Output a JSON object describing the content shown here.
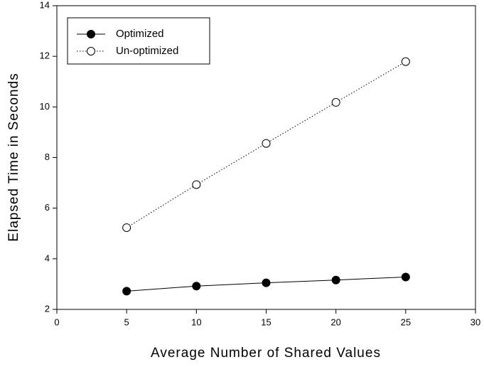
{
  "chart_data": {
    "type": "line",
    "xlabel": "Average Number of Shared Values",
    "ylabel": "Elapsed Time in Seconds",
    "x": [
      5,
      10,
      15,
      20,
      25
    ],
    "series": [
      {
        "name": "Optimized",
        "color": "#000000",
        "marker": "filled",
        "line_style": "solid",
        "values": [
          2.72,
          2.92,
          3.05,
          3.16,
          3.28
        ]
      },
      {
        "name": "Un-optimized",
        "color": "#000000",
        "marker": "open",
        "line_style": "dotted",
        "values": [
          5.23,
          6.93,
          8.56,
          10.18,
          11.79
        ]
      }
    ],
    "xlim": [
      0,
      30
    ],
    "xticks": [
      0,
      5,
      10,
      15,
      20,
      25,
      30
    ],
    "ylim": [
      2,
      14
    ],
    "yticks": [
      2,
      4,
      6,
      8,
      10,
      12,
      14
    ],
    "grid": false,
    "legend": "upper left"
  }
}
